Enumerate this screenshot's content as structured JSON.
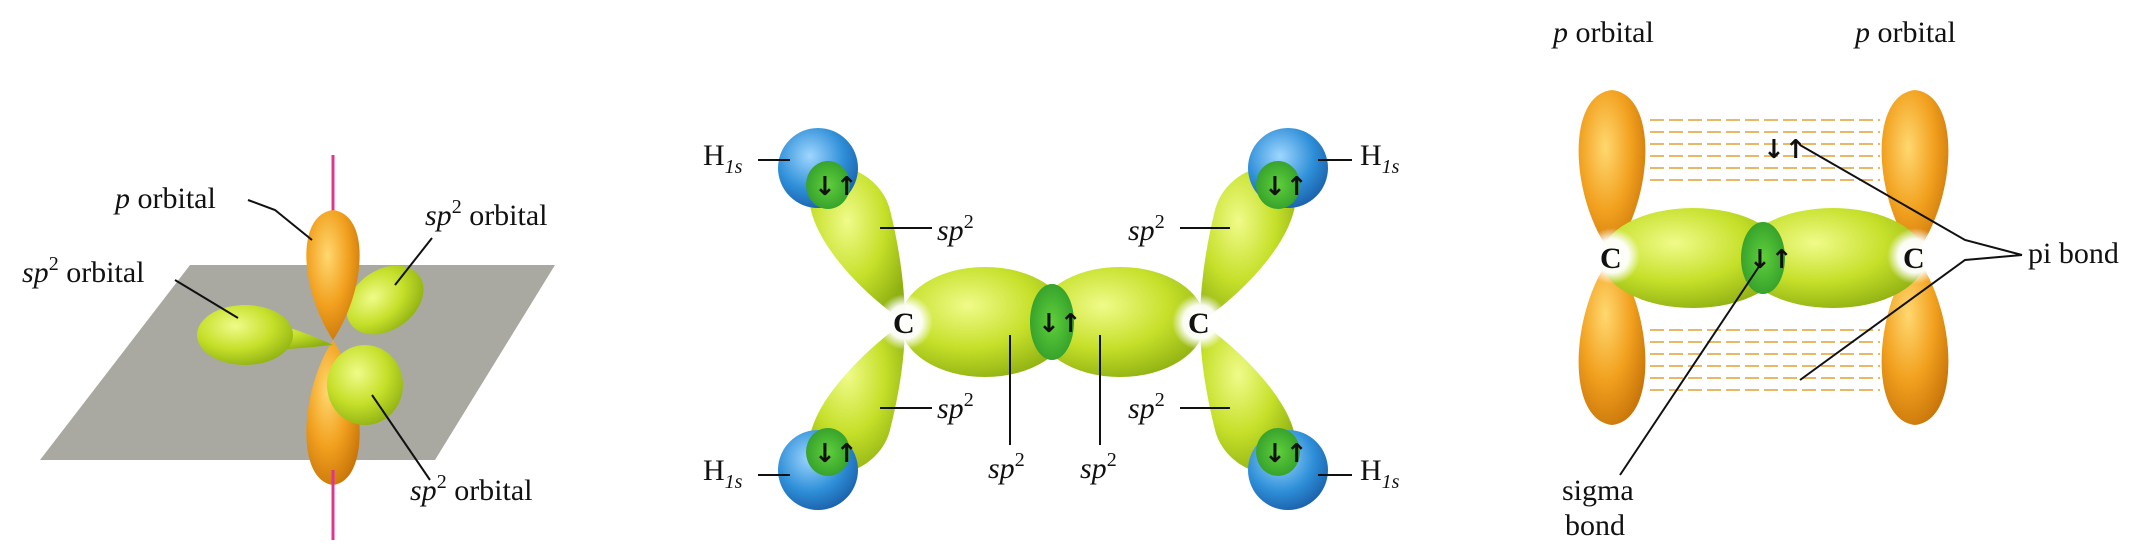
{
  "left": {
    "p_orbital": {
      "letter": "p",
      "word": "orbital"
    },
    "sp2_top": {
      "sp": "sp",
      "sup": "2",
      "word": "orbital"
    },
    "sp2_left": {
      "sp": "sp",
      "sup": "2",
      "word": "orbital"
    },
    "sp2_bottom": {
      "sp": "sp",
      "sup": "2",
      "word": "orbital"
    }
  },
  "middle": {
    "carbon": "C",
    "h_label": {
      "h": "H",
      "sub": "1s"
    },
    "sp": "sp",
    "sup": "2",
    "electron_pair": "↓↑"
  },
  "right": {
    "p_orbital_left": {
      "letter": "p",
      "word": "orbital"
    },
    "p_orbital_right": {
      "letter": "p",
      "word": "orbital"
    },
    "carbon": "C",
    "pi_bond": "pi bond",
    "sigma_bond": [
      "sigma",
      "bond"
    ],
    "electron_pair": "↓↑"
  },
  "colors": {
    "orange": "#f2a11f",
    "yellow_green": "#c6e02a",
    "blue": "#2e8fd8",
    "plane": "#9a9a92",
    "axis": "#e0358f"
  }
}
